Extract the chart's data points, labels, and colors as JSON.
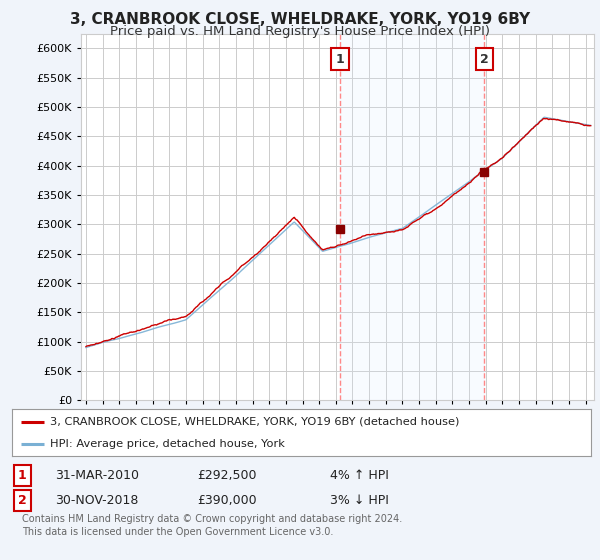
{
  "title": "3, CRANBROOK CLOSE, WHELDRAKE, YORK, YO19 6BY",
  "subtitle": "Price paid vs. HM Land Registry's House Price Index (HPI)",
  "ylabel_ticks": [
    "£0",
    "£50K",
    "£100K",
    "£150K",
    "£200K",
    "£250K",
    "£300K",
    "£350K",
    "£400K",
    "£450K",
    "£500K",
    "£550K",
    "£600K"
  ],
  "ytick_values": [
    0,
    50000,
    100000,
    150000,
    200000,
    250000,
    300000,
    350000,
    400000,
    450000,
    500000,
    550000,
    600000
  ],
  "ylim": [
    0,
    625000
  ],
  "xlim_start": 1994.7,
  "xlim_end": 2025.5,
  "background_color": "#f0f4fa",
  "plot_bg_color": "#ffffff",
  "grid_color": "#cccccc",
  "red_line_color": "#cc0000",
  "blue_line_color": "#7ab0d4",
  "blue_fill_color": "#ddeeff",
  "dashed_line_color": "#ff8888",
  "marker1_x": 2010.25,
  "marker1_y": 292500,
  "marker2_x": 2018.92,
  "marker2_y": 390000,
  "legend_label1": "3, CRANBROOK CLOSE, WHELDRAKE, YORK, YO19 6BY (detached house)",
  "legend_label2": "HPI: Average price, detached house, York",
  "footer": "Contains HM Land Registry data © Crown copyright and database right 2024.\nThis data is licensed under the Open Government Licence v3.0.",
  "title_fontsize": 11,
  "subtitle_fontsize": 9.5
}
